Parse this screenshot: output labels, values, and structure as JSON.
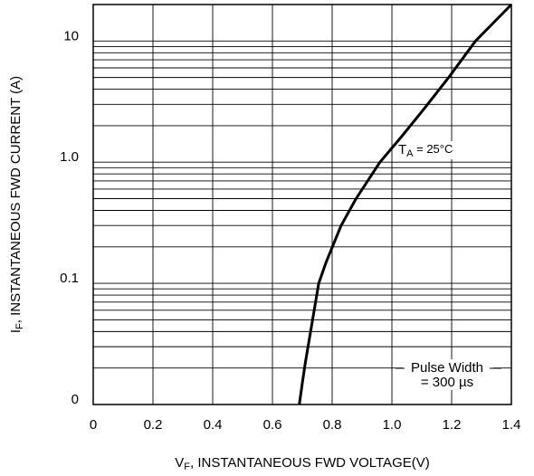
{
  "chart_data": {
    "type": "line",
    "log_y": true,
    "grid": true,
    "color": "#000000",
    "x": [
      0.69,
      0.7,
      0.71,
      0.755,
      0.78,
      0.83,
      0.88,
      0.96,
      1.03,
      1.11,
      1.19,
      1.28,
      1.4
    ],
    "values": [
      0.01,
      0.015,
      0.022,
      0.1,
      0.15,
      0.3,
      0.5,
      1,
      1.6,
      2.8,
      5,
      10,
      20
    ],
    "xlim": [
      0,
      1.4
    ],
    "xticks": [
      0,
      0.2,
      0.4,
      0.6,
      0.8,
      {
        "value": 1,
        "label": "1.0"
      },
      1.2,
      1.4
    ],
    "ylim": [
      0.01,
      20
    ],
    "yticks": [
      {
        "value": 0.01,
        "label": "0"
      },
      0.1,
      {
        "value": 1,
        "label": "1.0"
      },
      10
    ],
    "yminor": [
      0.02,
      0.03,
      0.04,
      0.05,
      0.06,
      0.07,
      0.08,
      0.09,
      0.2,
      0.3,
      0.4,
      0.5,
      0.6,
      0.7,
      0.8,
      0.9,
      2,
      3,
      4,
      5,
      6,
      7,
      8,
      9
    ],
    "x_label": {
      "symbol": "V",
      "sub": "F",
      "text": ", INSTANTANEOUS FWD VOLTAGE(V)"
    },
    "y_label": {
      "symbol": "I",
      "sub": "F",
      "text": ", INSTANTANEOUS FWD CURRENT (A)"
    },
    "annotations": {
      "temperature": {
        "symbol": "T",
        "sub": "A",
        "text": " =  25°C"
      },
      "pulse": [
        "Pulse Width",
        "= 300 µs"
      ]
    }
  }
}
